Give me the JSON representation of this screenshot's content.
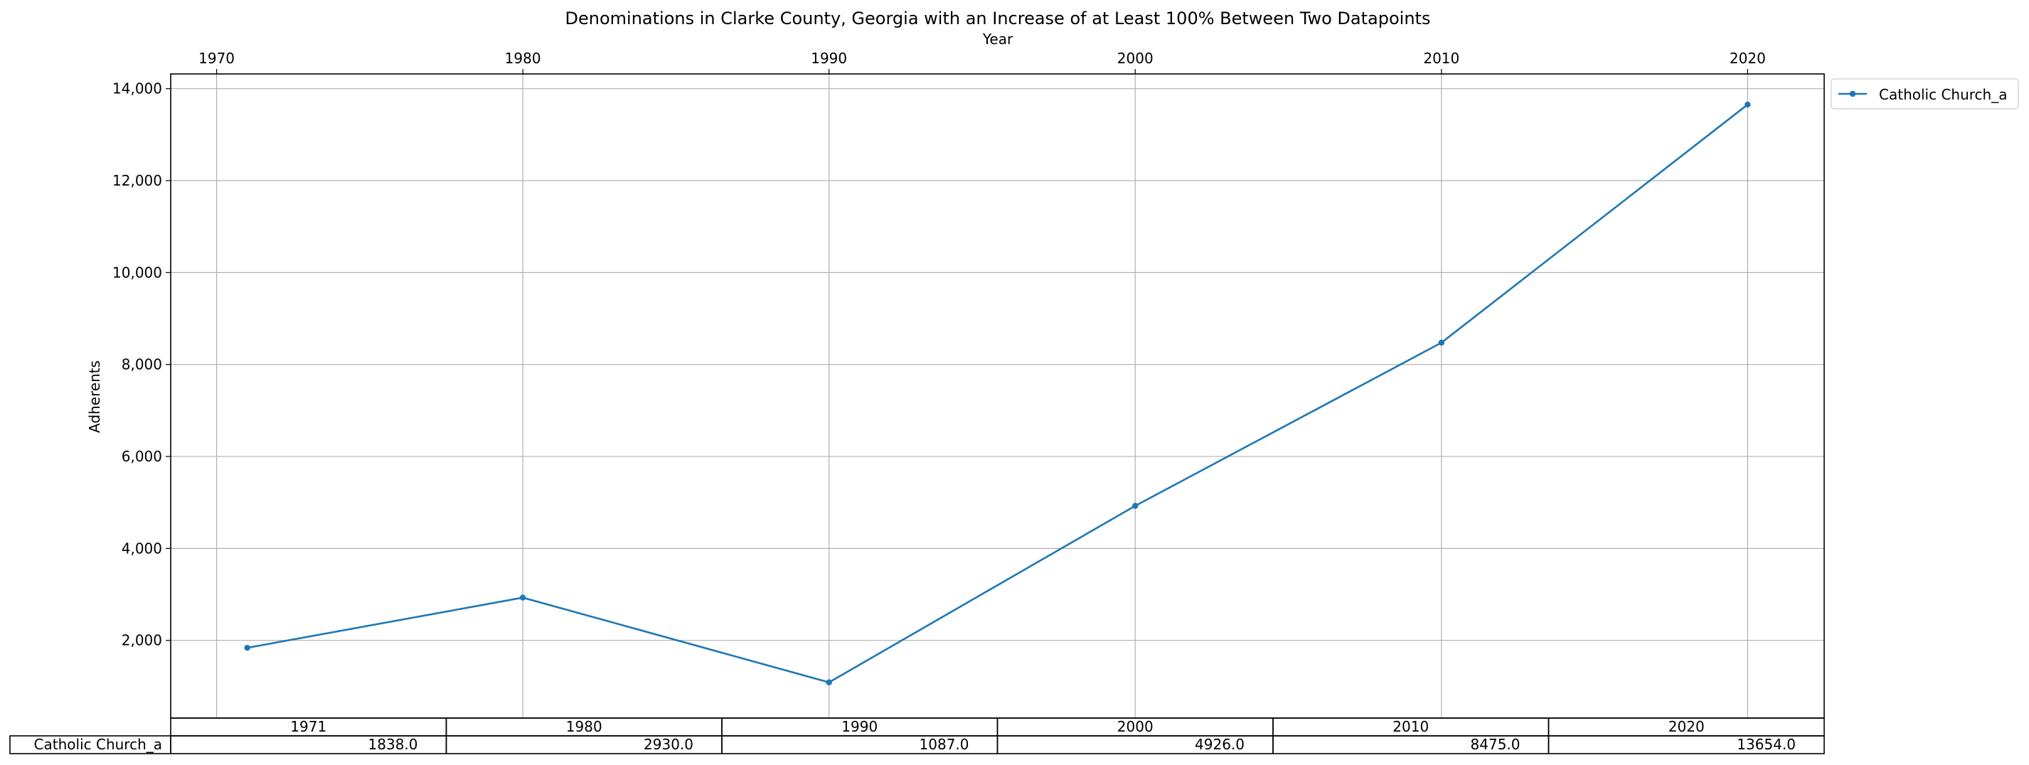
{
  "chart_data": {
    "type": "line",
    "title": "Denominations in Clarke County, Georgia with an Increase of at Least 100% Between Two Datapoints",
    "xlabel": "Year",
    "ylabel": "Adherents",
    "x_axis_position": "top",
    "x_ticks": [
      1970,
      1980,
      1990,
      2000,
      2010,
      2020
    ],
    "y_ticks": [
      "2,000",
      "4,000",
      "6,000",
      "8,000",
      "10,000",
      "12,000",
      "14,000"
    ],
    "y_tick_values": [
      2000,
      4000,
      6000,
      8000,
      10000,
      12000,
      14000
    ],
    "xlim": [
      1968.5,
      2022.5
    ],
    "ylim": [
      310,
      14320
    ],
    "grid": true,
    "legend_position": "outside top-right",
    "series": [
      {
        "name": "Catholic Church_a",
        "color": "#1f77b4",
        "marker": "circle",
        "x": [
          1971,
          1980,
          1990,
          2000,
          2010,
          2020
        ],
        "y": [
          1838,
          2930,
          1087,
          4926,
          8475,
          13654
        ]
      }
    ],
    "table": {
      "columns": [
        "1971",
        "1980",
        "1990",
        "2000",
        "2010",
        "2020"
      ],
      "rows": [
        {
          "label": "Catholic Church_a",
          "cells": [
            "1838.0",
            "2930.0",
            "1087.0",
            "4926.0",
            "8475.0",
            "13654.0"
          ]
        }
      ]
    }
  }
}
